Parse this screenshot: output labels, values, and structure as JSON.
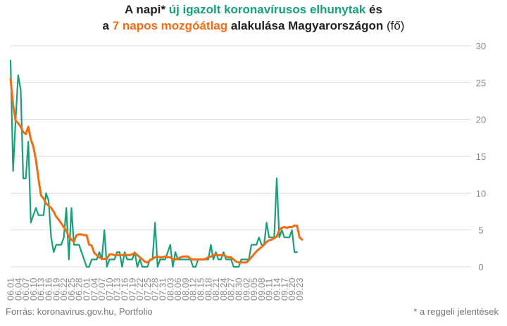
{
  "title": {
    "line1_prefix": "A napi* ",
    "line1_highlight": "új igazolt koronavírusos elhunytak",
    "line1_suffix": " és",
    "line2_prefix": "a ",
    "line2_highlight": "7 napos mozgóátlag",
    "line2_mid": " alakulása Magyarországon",
    "line2_unit": " (fő)"
  },
  "footer": {
    "source": "Forrás: koronavirus.gov.hu, Portfolio",
    "note": "* a reggeli jelentések"
  },
  "colors": {
    "daily": "#18a07a",
    "average": "#f36c11",
    "grid": "#dddddd",
    "text": "#888888"
  },
  "chart_data": {
    "type": "line",
    "x_tick_labels": [
      "06.01",
      "06.04",
      "06.07",
      "06.10",
      "06.13",
      "06.16",
      "06.19",
      "06.22",
      "06.25",
      "06.28",
      "07.01",
      "07.04",
      "07.07",
      "07.10",
      "07.13",
      "07.16",
      "07.19",
      "07.22",
      "07.25",
      "07.28",
      "07.31",
      "08.03",
      "08.06",
      "08.09",
      "08.12",
      "08.15",
      "08.18",
      "08.21",
      "08.24",
      "08.27",
      "08.30",
      "09.02",
      "09.05",
      "09.08",
      "09.11",
      "09.14",
      "09.17",
      "09.20",
      "09.23"
    ],
    "y_ticks": [
      0,
      5,
      10,
      15,
      20,
      25,
      30
    ],
    "ylim": [
      0,
      30
    ],
    "series": [
      {
        "key": "daily",
        "values": [
          28,
          13,
          20,
          26,
          24,
          12,
          12,
          17,
          6,
          7,
          8,
          7,
          7,
          7,
          10,
          9,
          4,
          2,
          3,
          3,
          3,
          4,
          8,
          1,
          8,
          3,
          3,
          3,
          2,
          1,
          0,
          0,
          1,
          1,
          1,
          2,
          1,
          5,
          0,
          1,
          1,
          1,
          2,
          2,
          0,
          2,
          1,
          1,
          1,
          2,
          0,
          1,
          0,
          0,
          0,
          1,
          1,
          6,
          0,
          1,
          1,
          1,
          2,
          3,
          0,
          2,
          1,
          1,
          1,
          1,
          1,
          1,
          0,
          0,
          1,
          1,
          1,
          1,
          1,
          3,
          1,
          2,
          1,
          1,
          2,
          1,
          1,
          1,
          0,
          0,
          0,
          1,
          1,
          1,
          1,
          3,
          3,
          3,
          4,
          3,
          3,
          6,
          4,
          4,
          4,
          12,
          4,
          5,
          4,
          4,
          4,
          5,
          2,
          2
        ]
      },
      {
        "key": "average",
        "values": [
          25.5,
          22,
          19.8,
          19.5,
          19,
          18.3,
          18,
          19,
          17.3,
          16.3,
          14.5,
          12,
          9.7,
          9.3,
          8.6,
          8.3,
          8,
          7.5,
          6.8,
          6.4,
          5.9,
          5.4,
          4.9,
          4.1,
          3.7,
          3.4,
          4.3,
          4.4,
          4.4,
          4.3,
          4.3,
          3,
          2.9,
          1.9,
          1.6,
          1.3,
          1.1,
          1.1,
          1.1,
          1.7,
          1.7,
          1.6,
          1.6,
          1.6,
          1.6,
          1.7,
          1.6,
          1.6,
          1.7,
          1.9,
          1.6,
          1.3,
          1,
          0.7,
          0.6,
          0.9,
          1.1,
          1.3,
          1.4,
          1.3,
          1.3,
          1.4,
          1.3,
          1.3,
          1,
          1,
          1.1,
          1.3,
          1.4,
          1.4,
          1.4,
          1.1,
          1,
          1,
          1,
          1,
          1,
          1.1,
          1.3,
          1.4,
          1.6,
          1.6,
          1.6,
          1.6,
          1.6,
          1.4,
          1.3,
          1.3,
          1,
          0.7,
          0.6,
          0.6,
          0.6,
          0.6,
          0.9,
          1.3,
          1.7,
          2.1,
          2.4,
          2.7,
          3,
          3.4,
          3.6,
          3.7,
          3.9,
          4.1,
          5,
          5.3,
          5.4,
          5.3,
          5.4,
          5.4,
          5.6,
          5.6,
          4,
          3.7
        ]
      }
    ]
  }
}
